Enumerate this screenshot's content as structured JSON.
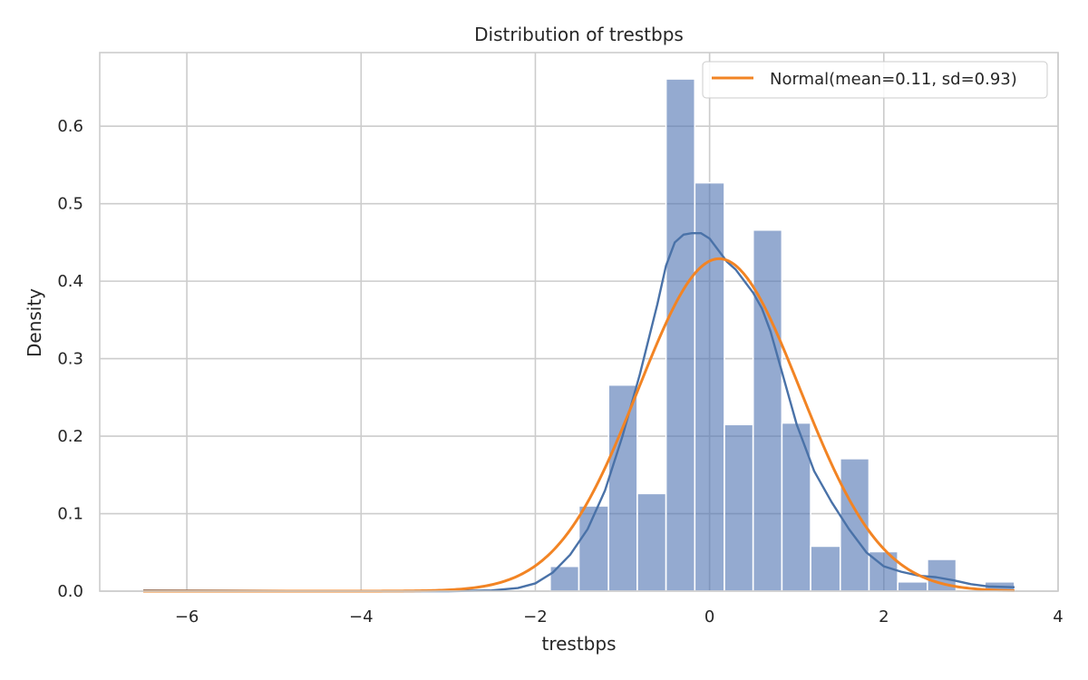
{
  "chart_data": {
    "type": "histogram",
    "title": "Distribution of trestbps",
    "xlabel": "trestbps",
    "ylabel": "Density",
    "xlim": [
      -7.0,
      4.0
    ],
    "ylim": [
      0.0,
      0.695
    ],
    "xticks": [
      -6,
      -4,
      -2,
      0,
      2,
      4
    ],
    "xtick_labels": [
      "−6",
      "−4",
      "−2",
      "0",
      "2",
      "4"
    ],
    "yticks": [
      0.0,
      0.1,
      0.2,
      0.3,
      0.4,
      0.5,
      0.6
    ],
    "ytick_labels": [
      "0.0",
      "0.1",
      "0.2",
      "0.3",
      "0.4",
      "0.5",
      "0.6"
    ],
    "grid": true,
    "legend_position": "top-right",
    "legend": [
      "Normal(mean=0.11, sd=0.93)"
    ],
    "histogram": {
      "bin_edges": [
        -1.83,
        -1.5,
        -1.16,
        -0.83,
        -0.5,
        -0.17,
        0.17,
        0.5,
        0.83,
        1.16,
        1.5,
        1.83,
        2.16,
        2.5,
        2.83,
        3.16,
        3.5
      ],
      "densities": [
        0.032,
        0.11,
        0.266,
        0.126,
        0.661,
        0.527,
        0.215,
        0.466,
        0.217,
        0.058,
        0.171,
        0.051,
        0.012,
        0.041,
        0.0,
        0.012
      ],
      "color": "#4c72b0"
    },
    "kde": {
      "color": "#4a72a8",
      "x": [
        -6.5,
        -4.0,
        -3.0,
        -2.5,
        -2.2,
        -2.0,
        -1.8,
        -1.6,
        -1.4,
        -1.2,
        -1.0,
        -0.8,
        -0.6,
        -0.5,
        -0.4,
        -0.3,
        -0.2,
        -0.1,
        0.0,
        0.1,
        0.2,
        0.3,
        0.4,
        0.5,
        0.6,
        0.7,
        0.8,
        0.9,
        1.0,
        1.2,
        1.4,
        1.6,
        1.8,
        2.0,
        2.2,
        2.4,
        2.6,
        2.8,
        3.0,
        3.2,
        3.5
      ],
      "y": [
        0.001,
        0.0,
        0.0,
        0.001,
        0.004,
        0.01,
        0.024,
        0.047,
        0.08,
        0.13,
        0.2,
        0.28,
        0.37,
        0.42,
        0.45,
        0.46,
        0.462,
        0.462,
        0.455,
        0.44,
        0.425,
        0.415,
        0.4,
        0.385,
        0.365,
        0.335,
        0.295,
        0.255,
        0.215,
        0.155,
        0.115,
        0.08,
        0.05,
        0.032,
        0.025,
        0.02,
        0.018,
        0.014,
        0.009,
        0.006,
        0.005
      ]
    },
    "series": [
      {
        "name": "Normal(mean=0.11, sd=0.93)",
        "type": "line",
        "mean": 0.11,
        "sd": 0.93,
        "color": "#f28424"
      }
    ]
  }
}
